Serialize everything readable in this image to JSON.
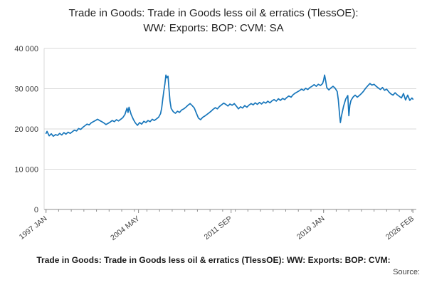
{
  "title": {
    "line1": "Trade in Goods: Trade in Goods less oil & erratics (TlessOE):",
    "line2": "WW: Exports: BOP: CVM: SA"
  },
  "footer": {
    "caption": "Trade in Goods: Trade in Goods less oil & erratics (TlessOE): WW: Exports: BOP: CVM:",
    "source_label": "Source:"
  },
  "chart_data": {
    "type": "line",
    "title": "Trade in Goods: Trade in Goods less oil & erratics (TlessOE): WW: Exports: BOP: CVM: SA",
    "xlabel": "",
    "ylabel": "",
    "grid": "horizontal",
    "x_axis": {
      "range": [
        1996.85,
        2026.35
      ],
      "tick_labels": [
        {
          "label": "1997 JAN",
          "x": 1997.0
        },
        {
          "label": "2004 MAY",
          "x": 2004.33
        },
        {
          "label": "2011 SEP",
          "x": 2011.67
        },
        {
          "label": "2019 JAN",
          "x": 2019.0
        },
        {
          "label": "2026 FEB",
          "x": 2026.08
        }
      ],
      "minor_ticks_yearly": true
    },
    "y_axis": {
      "range": [
        0,
        40000
      ],
      "ticks": [
        {
          "label": "0",
          "v": 0
        },
        {
          "label": "10 000",
          "v": 10000
        },
        {
          "label": "20 000",
          "v": 20000
        },
        {
          "label": "30 000",
          "v": 30000
        },
        {
          "label": "40 000",
          "v": 40000
        }
      ]
    },
    "series": [
      {
        "name": "TlessOE WW Exports BOP CVM SA",
        "color": "#1776bb",
        "points": [
          [
            1997.0,
            18900
          ],
          [
            1997.08,
            19400
          ],
          [
            1997.25,
            18300
          ],
          [
            1997.42,
            18800
          ],
          [
            1997.58,
            18200
          ],
          [
            1997.75,
            18600
          ],
          [
            1997.92,
            18400
          ],
          [
            1998.08,
            18900
          ],
          [
            1998.25,
            18500
          ],
          [
            1998.42,
            19100
          ],
          [
            1998.58,
            18700
          ],
          [
            1998.75,
            19200
          ],
          [
            1998.92,
            18900
          ],
          [
            1999.08,
            19300
          ],
          [
            1999.25,
            19700
          ],
          [
            1999.42,
            19500
          ],
          [
            1999.58,
            20100
          ],
          [
            1999.75,
            19900
          ],
          [
            1999.92,
            20400
          ],
          [
            2000.08,
            20800
          ],
          [
            2000.25,
            21200
          ],
          [
            2000.42,
            21000
          ],
          [
            2000.58,
            21500
          ],
          [
            2000.75,
            21800
          ],
          [
            2000.92,
            22100
          ],
          [
            2001.08,
            22400
          ],
          [
            2001.25,
            22100
          ],
          [
            2001.42,
            21800
          ],
          [
            2001.58,
            21500
          ],
          [
            2001.75,
            21100
          ],
          [
            2001.92,
            21400
          ],
          [
            2002.08,
            21700
          ],
          [
            2002.25,
            22100
          ],
          [
            2002.42,
            21800
          ],
          [
            2002.58,
            22300
          ],
          [
            2002.75,
            22000
          ],
          [
            2002.92,
            22400
          ],
          [
            2003.08,
            22800
          ],
          [
            2003.25,
            23600
          ],
          [
            2003.42,
            25200
          ],
          [
            2003.5,
            24100
          ],
          [
            2003.58,
            25400
          ],
          [
            2003.75,
            23600
          ],
          [
            2003.92,
            22400
          ],
          [
            2004.08,
            21500
          ],
          [
            2004.25,
            20900
          ],
          [
            2004.42,
            21600
          ],
          [
            2004.58,
            21200
          ],
          [
            2004.75,
            21900
          ],
          [
            2004.92,
            21600
          ],
          [
            2005.08,
            22100
          ],
          [
            2005.25,
            21800
          ],
          [
            2005.42,
            22400
          ],
          [
            2005.58,
            22100
          ],
          [
            2005.75,
            22500
          ],
          [
            2005.92,
            22900
          ],
          [
            2006.08,
            23800
          ],
          [
            2006.17,
            25200
          ],
          [
            2006.25,
            27400
          ],
          [
            2006.33,
            29300
          ],
          [
            2006.42,
            31200
          ],
          [
            2006.5,
            33400
          ],
          [
            2006.58,
            32700
          ],
          [
            2006.67,
            33100
          ],
          [
            2006.75,
            29800
          ],
          [
            2006.83,
            26900
          ],
          [
            2006.92,
            25100
          ],
          [
            2007.08,
            24300
          ],
          [
            2007.25,
            23900
          ],
          [
            2007.42,
            24400
          ],
          [
            2007.58,
            24100
          ],
          [
            2007.75,
            24700
          ],
          [
            2007.92,
            25000
          ],
          [
            2008.08,
            25400
          ],
          [
            2008.25,
            25900
          ],
          [
            2008.42,
            26300
          ],
          [
            2008.58,
            25800
          ],
          [
            2008.75,
            25200
          ],
          [
            2008.92,
            23900
          ],
          [
            2009.08,
            22700
          ],
          [
            2009.25,
            22300
          ],
          [
            2009.42,
            22900
          ],
          [
            2009.58,
            23200
          ],
          [
            2009.75,
            23600
          ],
          [
            2009.92,
            24000
          ],
          [
            2010.08,
            24400
          ],
          [
            2010.25,
            24900
          ],
          [
            2010.42,
            25300
          ],
          [
            2010.58,
            25000
          ],
          [
            2010.75,
            25600
          ],
          [
            2010.92,
            26000
          ],
          [
            2011.08,
            26400
          ],
          [
            2011.25,
            26100
          ],
          [
            2011.42,
            25700
          ],
          [
            2011.58,
            26200
          ],
          [
            2011.75,
            25900
          ],
          [
            2011.92,
            26300
          ],
          [
            2012.08,
            25700
          ],
          [
            2012.25,
            25000
          ],
          [
            2012.42,
            25500
          ],
          [
            2012.58,
            25200
          ],
          [
            2012.75,
            25800
          ],
          [
            2012.92,
            25400
          ],
          [
            2013.08,
            25900
          ],
          [
            2013.25,
            26300
          ],
          [
            2013.42,
            26000
          ],
          [
            2013.58,
            26500
          ],
          [
            2013.75,
            26100
          ],
          [
            2013.92,
            26600
          ],
          [
            2014.08,
            26200
          ],
          [
            2014.25,
            26700
          ],
          [
            2014.42,
            26400
          ],
          [
            2014.58,
            26900
          ],
          [
            2014.75,
            26500
          ],
          [
            2014.92,
            27000
          ],
          [
            2015.08,
            27300
          ],
          [
            2015.25,
            26900
          ],
          [
            2015.42,
            27500
          ],
          [
            2015.58,
            27100
          ],
          [
            2015.75,
            27600
          ],
          [
            2015.92,
            27300
          ],
          [
            2016.08,
            27800
          ],
          [
            2016.25,
            28200
          ],
          [
            2016.42,
            27900
          ],
          [
            2016.58,
            28500
          ],
          [
            2016.75,
            28900
          ],
          [
            2016.92,
            29200
          ],
          [
            2017.08,
            29500
          ],
          [
            2017.25,
            29900
          ],
          [
            2017.42,
            29600
          ],
          [
            2017.58,
            30100
          ],
          [
            2017.75,
            29800
          ],
          [
            2017.92,
            30300
          ],
          [
            2018.08,
            30600
          ],
          [
            2018.25,
            31000
          ],
          [
            2018.42,
            30600
          ],
          [
            2018.58,
            31100
          ],
          [
            2018.75,
            30800
          ],
          [
            2018.92,
            31300
          ],
          [
            2019.0,
            32100
          ],
          [
            2019.08,
            33400
          ],
          [
            2019.17,
            31900
          ],
          [
            2019.25,
            30300
          ],
          [
            2019.42,
            29700
          ],
          [
            2019.58,
            30200
          ],
          [
            2019.75,
            30600
          ],
          [
            2019.92,
            30100
          ],
          [
            2020.08,
            29300
          ],
          [
            2020.17,
            27200
          ],
          [
            2020.25,
            24100
          ],
          [
            2020.33,
            21600
          ],
          [
            2020.42,
            23300
          ],
          [
            2020.58,
            25600
          ],
          [
            2020.75,
            27400
          ],
          [
            2020.92,
            28300
          ],
          [
            2021.0,
            23300
          ],
          [
            2021.08,
            25900
          ],
          [
            2021.17,
            27100
          ],
          [
            2021.33,
            27900
          ],
          [
            2021.5,
            28400
          ],
          [
            2021.67,
            27900
          ],
          [
            2021.83,
            28300
          ],
          [
            2022.0,
            28800
          ],
          [
            2022.17,
            29400
          ],
          [
            2022.33,
            30100
          ],
          [
            2022.5,
            30700
          ],
          [
            2022.67,
            31300
          ],
          [
            2022.83,
            30900
          ],
          [
            2023.0,
            31100
          ],
          [
            2023.17,
            30600
          ],
          [
            2023.33,
            30200
          ],
          [
            2023.5,
            29800
          ],
          [
            2023.67,
            30300
          ],
          [
            2023.83,
            29600
          ],
          [
            2024.0,
            29900
          ],
          [
            2024.17,
            29200
          ],
          [
            2024.33,
            28700
          ],
          [
            2024.5,
            28400
          ],
          [
            2024.67,
            29000
          ],
          [
            2024.83,
            28500
          ],
          [
            2025.0,
            28100
          ],
          [
            2025.17,
            27700
          ],
          [
            2025.33,
            28800
          ],
          [
            2025.5,
            27200
          ],
          [
            2025.67,
            28400
          ],
          [
            2025.83,
            27100
          ],
          [
            2026.0,
            27700
          ],
          [
            2026.08,
            27400
          ]
        ]
      }
    ]
  }
}
